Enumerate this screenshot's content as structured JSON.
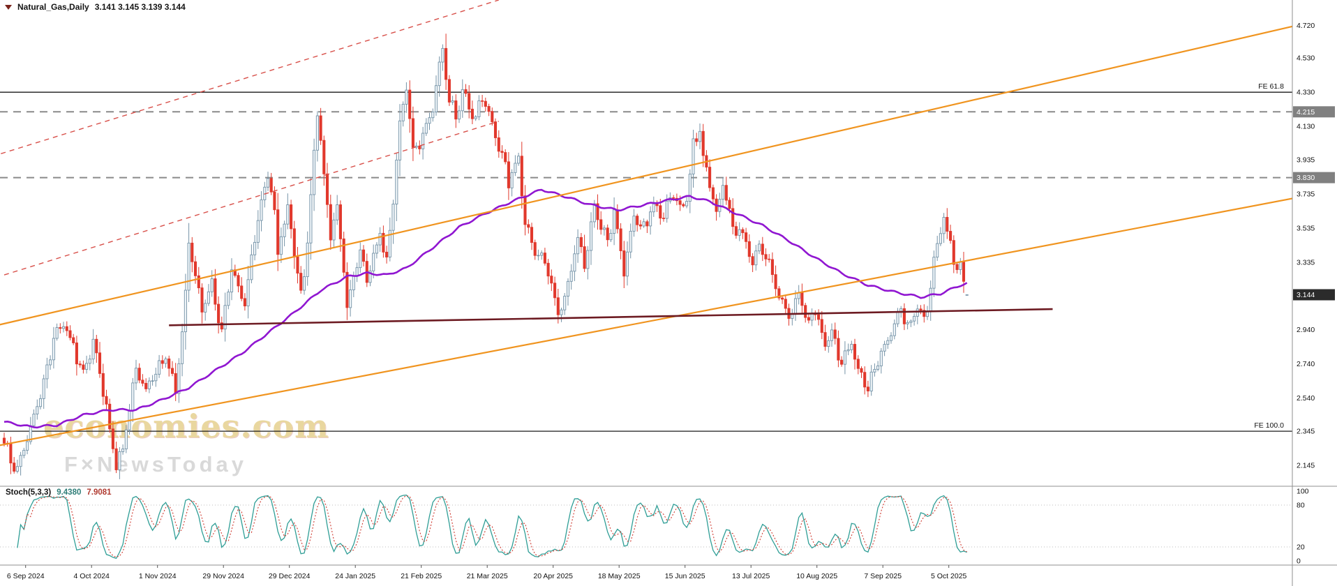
{
  "header": {
    "symbol": "Natural_Gas,Daily",
    "ohlc_text": "3.141 3.145 3.139 3.144"
  },
  "watermark": {
    "line1": "economies.com",
    "line2": "F×NewsToday"
  },
  "price_axis": {
    "ticks": [
      4.72,
      4.53,
      4.33,
      4.13,
      3.935,
      3.735,
      3.535,
      3.335,
      2.94,
      2.74,
      2.54,
      2.345,
      2.145
    ]
  },
  "time_axis": {
    "labels": [
      {
        "text": "6 Sep 2024",
        "day": 6.5
      },
      {
        "text": "4 Oct 2024",
        "day": 26.5
      },
      {
        "text": "1 Nov 2024",
        "day": 46.5
      },
      {
        "text": "29 Nov 2024",
        "day": 66.5
      },
      {
        "text": "29 Dec 2024",
        "day": 86.5
      },
      {
        "text": "24 Jan 2025",
        "day": 106.5
      },
      {
        "text": "21 Feb 2025",
        "day": 126.5
      },
      {
        "text": "21 Mar 2025",
        "day": 146.5
      },
      {
        "text": "20 Apr 2025",
        "day": 166.5
      },
      {
        "text": "18 May 2025",
        "day": 186.5
      },
      {
        "text": "15 Jun 2025",
        "day": 206.5
      },
      {
        "text": "13 Jul 2025",
        "day": 226.5
      },
      {
        "text": "10 Aug 2025",
        "day": 246.5
      },
      {
        "text": "7 Sep 2025",
        "day": 266.5
      },
      {
        "text": "5 Oct 2025",
        "day": 286.5
      }
    ]
  },
  "stoch": {
    "title": "Stoch(5,3,3)",
    "k_value": "9.4380",
    "d_value": "7.9081",
    "axis_labels": [
      "100",
      "80",
      "20",
      "0"
    ],
    "upper_band": 80,
    "lower_band": 20
  },
  "chart_data": {
    "type": "candlestick",
    "symbol": "Natural_Gas",
    "timeframe": "Daily",
    "candle_count": 293,
    "x_unit": "trading-day-index",
    "price_axis_top": 4.87,
    "price_axis_bottom": 2.023,
    "current_price": 3.144,
    "last_ohlc": {
      "open": 3.141,
      "high": 3.145,
      "low": 3.139,
      "close": 3.144
    },
    "close_anchors": [
      [
        0,
        2.28
      ],
      [
        2,
        2.16
      ],
      [
        4,
        2.1
      ],
      [
        6,
        2.26
      ],
      [
        9,
        2.44
      ],
      [
        12,
        2.62
      ],
      [
        15,
        2.88
      ],
      [
        18,
        2.96
      ],
      [
        21,
        2.84
      ],
      [
        24,
        2.7
      ],
      [
        27,
        2.87
      ],
      [
        30,
        2.58
      ],
      [
        32,
        2.34
      ],
      [
        34,
        2.16
      ],
      [
        36,
        2.24
      ],
      [
        38,
        2.48
      ],
      [
        40,
        2.72
      ],
      [
        43,
        2.58
      ],
      [
        46,
        2.7
      ],
      [
        49,
        2.8
      ],
      [
        52,
        2.58
      ],
      [
        55,
        3.12
      ],
      [
        56,
        3.42
      ],
      [
        58,
        3.24
      ],
      [
        60,
        3.05
      ],
      [
        63,
        3.22
      ],
      [
        66,
        2.92
      ],
      [
        69,
        3.3
      ],
      [
        71,
        3.18
      ],
      [
        73,
        3.1
      ],
      [
        75,
        3.36
      ],
      [
        77,
        3.58
      ],
      [
        79,
        3.76
      ],
      [
        80,
        3.86
      ],
      [
        82,
        3.58
      ],
      [
        83,
        3.38
      ],
      [
        85,
        3.56
      ],
      [
        86,
        3.66
      ],
      [
        88,
        3.4
      ],
      [
        90,
        3.14
      ],
      [
        92,
        3.46
      ],
      [
        93,
        3.74
      ],
      [
        95,
        4.22
      ],
      [
        96,
        4.04
      ],
      [
        97,
        3.82
      ],
      [
        99,
        3.5
      ],
      [
        101,
        3.66
      ],
      [
        103,
        3.34
      ],
      [
        104,
        3.1
      ],
      [
        106,
        3.26
      ],
      [
        108,
        3.38
      ],
      [
        110,
        3.2
      ],
      [
        112,
        3.36
      ],
      [
        114,
        3.5
      ],
      [
        116,
        3.36
      ],
      [
        118,
        3.72
      ],
      [
        120,
        4.16
      ],
      [
        122,
        4.36
      ],
      [
        124,
        3.95
      ],
      [
        126,
        4.03
      ],
      [
        128,
        4.13
      ],
      [
        130,
        4.26
      ],
      [
        131,
        4.4
      ],
      [
        133,
        4.61
      ],
      [
        134,
        4.45
      ],
      [
        135,
        4.28
      ],
      [
        137,
        4.15
      ],
      [
        139,
        4.32
      ],
      [
        141,
        4.24
      ],
      [
        143,
        4.18
      ],
      [
        145,
        4.33
      ],
      [
        147,
        4.21
      ],
      [
        149,
        4.05
      ],
      [
        151,
        3.96
      ],
      [
        153,
        3.81
      ],
      [
        155,
        3.91
      ],
      [
        156,
        3.96
      ],
      [
        158,
        3.58
      ],
      [
        160,
        3.44
      ],
      [
        162,
        3.36
      ],
      [
        164,
        3.3
      ],
      [
        166,
        3.2
      ],
      [
        168,
        3.05
      ],
      [
        170,
        3.16
      ],
      [
        172,
        3.31
      ],
      [
        174,
        3.46
      ],
      [
        176,
        3.32
      ],
      [
        178,
        3.53
      ],
      [
        179,
        3.64
      ],
      [
        181,
        3.55
      ],
      [
        183,
        3.47
      ],
      [
        185,
        3.64
      ],
      [
        187,
        3.39
      ],
      [
        188,
        3.25
      ],
      [
        190,
        3.46
      ],
      [
        191,
        3.6
      ],
      [
        193,
        3.52
      ],
      [
        195,
        3.58
      ],
      [
        197,
        3.7
      ],
      [
        199,
        3.61
      ],
      [
        201,
        3.66
      ],
      [
        203,
        3.74
      ],
      [
        205,
        3.63
      ],
      [
        207,
        3.71
      ],
      [
        209,
        4.02
      ],
      [
        211,
        4.12
      ],
      [
        213,
        3.87
      ],
      [
        215,
        3.7
      ],
      [
        216,
        3.6
      ],
      [
        218,
        3.76
      ],
      [
        220,
        3.62
      ],
      [
        221,
        3.5
      ],
      [
        223,
        3.56
      ],
      [
        225,
        3.47
      ],
      [
        227,
        3.35
      ],
      [
        229,
        3.43
      ],
      [
        231,
        3.34
      ],
      [
        233,
        3.25
      ],
      [
        235,
        3.14
      ],
      [
        237,
        3.08
      ],
      [
        239,
        3.03
      ],
      [
        241,
        3.16
      ],
      [
        243,
        3.01
      ],
      [
        244,
        2.95
      ],
      [
        246,
        3.06
      ],
      [
        248,
        2.92
      ],
      [
        249,
        2.86
      ],
      [
        251,
        2.93
      ],
      [
        253,
        2.8
      ],
      [
        254,
        2.74
      ],
      [
        256,
        2.79
      ],
      [
        257,
        2.84
      ],
      [
        259,
        2.7
      ],
      [
        261,
        2.64
      ],
      [
        262,
        2.6
      ],
      [
        264,
        2.71
      ],
      [
        266,
        2.81
      ],
      [
        268,
        2.89
      ],
      [
        270,
        2.97
      ],
      [
        272,
        3.06
      ],
      [
        274,
        2.95
      ],
      [
        276,
        3.05
      ],
      [
        277,
        3.1
      ],
      [
        279,
        3.0
      ],
      [
        281,
        3.18
      ],
      [
        283,
        3.44
      ],
      [
        285,
        3.58
      ],
      [
        286,
        3.5
      ],
      [
        288,
        3.37
      ],
      [
        289,
        3.3
      ],
      [
        290,
        3.34
      ],
      [
        291,
        3.22
      ],
      [
        292,
        3.144
      ]
    ],
    "ma_anchors": [
      [
        0,
        2.4
      ],
      [
        8,
        2.37
      ],
      [
        16,
        2.38
      ],
      [
        24,
        2.44
      ],
      [
        32,
        2.47
      ],
      [
        40,
        2.47
      ],
      [
        48,
        2.53
      ],
      [
        56,
        2.6
      ],
      [
        64,
        2.7
      ],
      [
        72,
        2.8
      ],
      [
        80,
        2.92
      ],
      [
        88,
        3.04
      ],
      [
        96,
        3.17
      ],
      [
        104,
        3.25
      ],
      [
        110,
        3.27
      ],
      [
        116,
        3.26
      ],
      [
        122,
        3.3
      ],
      [
        130,
        3.42
      ],
      [
        138,
        3.54
      ],
      [
        146,
        3.62
      ],
      [
        154,
        3.69
      ],
      [
        163,
        3.76
      ],
      [
        170,
        3.72
      ],
      [
        178,
        3.67
      ],
      [
        186,
        3.64
      ],
      [
        194,
        3.67
      ],
      [
        202,
        3.7
      ],
      [
        208,
        3.72
      ],
      [
        214,
        3.69
      ],
      [
        222,
        3.62
      ],
      [
        230,
        3.55
      ],
      [
        238,
        3.46
      ],
      [
        246,
        3.36
      ],
      [
        254,
        3.27
      ],
      [
        262,
        3.2
      ],
      [
        270,
        3.16
      ],
      [
        278,
        3.13
      ],
      [
        284,
        3.15
      ],
      [
        290,
        3.2
      ],
      [
        292,
        3.21
      ]
    ],
    "overlay_lines": {
      "trendline": {
        "from": [
          50,
          2.965
        ],
        "to": [
          318,
          3.06
        ],
        "color": "#6d1b22",
        "style": "solid"
      },
      "channel_upper": {
        "from": [
          -2,
          2.966
        ],
        "to": [
          394,
          4.73
        ],
        "color": "#f0941f",
        "style": "solid"
      },
      "channel_lower": {
        "from": [
          -2,
          2.26
        ],
        "to": [
          394,
          3.72
        ],
        "color": "#f0941f",
        "style": "solid"
      },
      "wedge_upper": {
        "from": [
          -1,
          3.97
        ],
        "to": [
          150,
          4.87
        ],
        "color": "#d8504a",
        "style": "dashed"
      },
      "wedge_lower": {
        "from": [
          0,
          3.26
        ],
        "to": [
          150,
          4.16
        ],
        "color": "#d8504a",
        "style": "dashed"
      }
    },
    "horizontal_lines": [
      {
        "price": 4.33,
        "label": "FE 61.8",
        "color": "#1a1a1a",
        "style": "solid",
        "badge": false
      },
      {
        "price": 2.345,
        "label": "FE 100.0",
        "color": "#1a1a1a",
        "style": "solid",
        "badge": false
      },
      {
        "price": 4.215,
        "label": "4.215",
        "color": "#8a8a8a",
        "style": "dashed",
        "badge": true
      },
      {
        "price": 3.83,
        "label": "3.830",
        "color": "#8a8a8a",
        "style": "dashed",
        "badge": true
      }
    ],
    "colors": {
      "up_fill": "#eef4f8",
      "up_stroke": "#7593a7",
      "down": "#e1382c",
      "ma": "#9016d1",
      "trend": "#6d1b22",
      "channel": "#f0941f",
      "wedge": "#d8504a",
      "stoch_k": "#2f9e96",
      "stoch_d": "#cf3a30",
      "level_badge": "#808080",
      "current_badge": "#2b2b2b"
    }
  }
}
